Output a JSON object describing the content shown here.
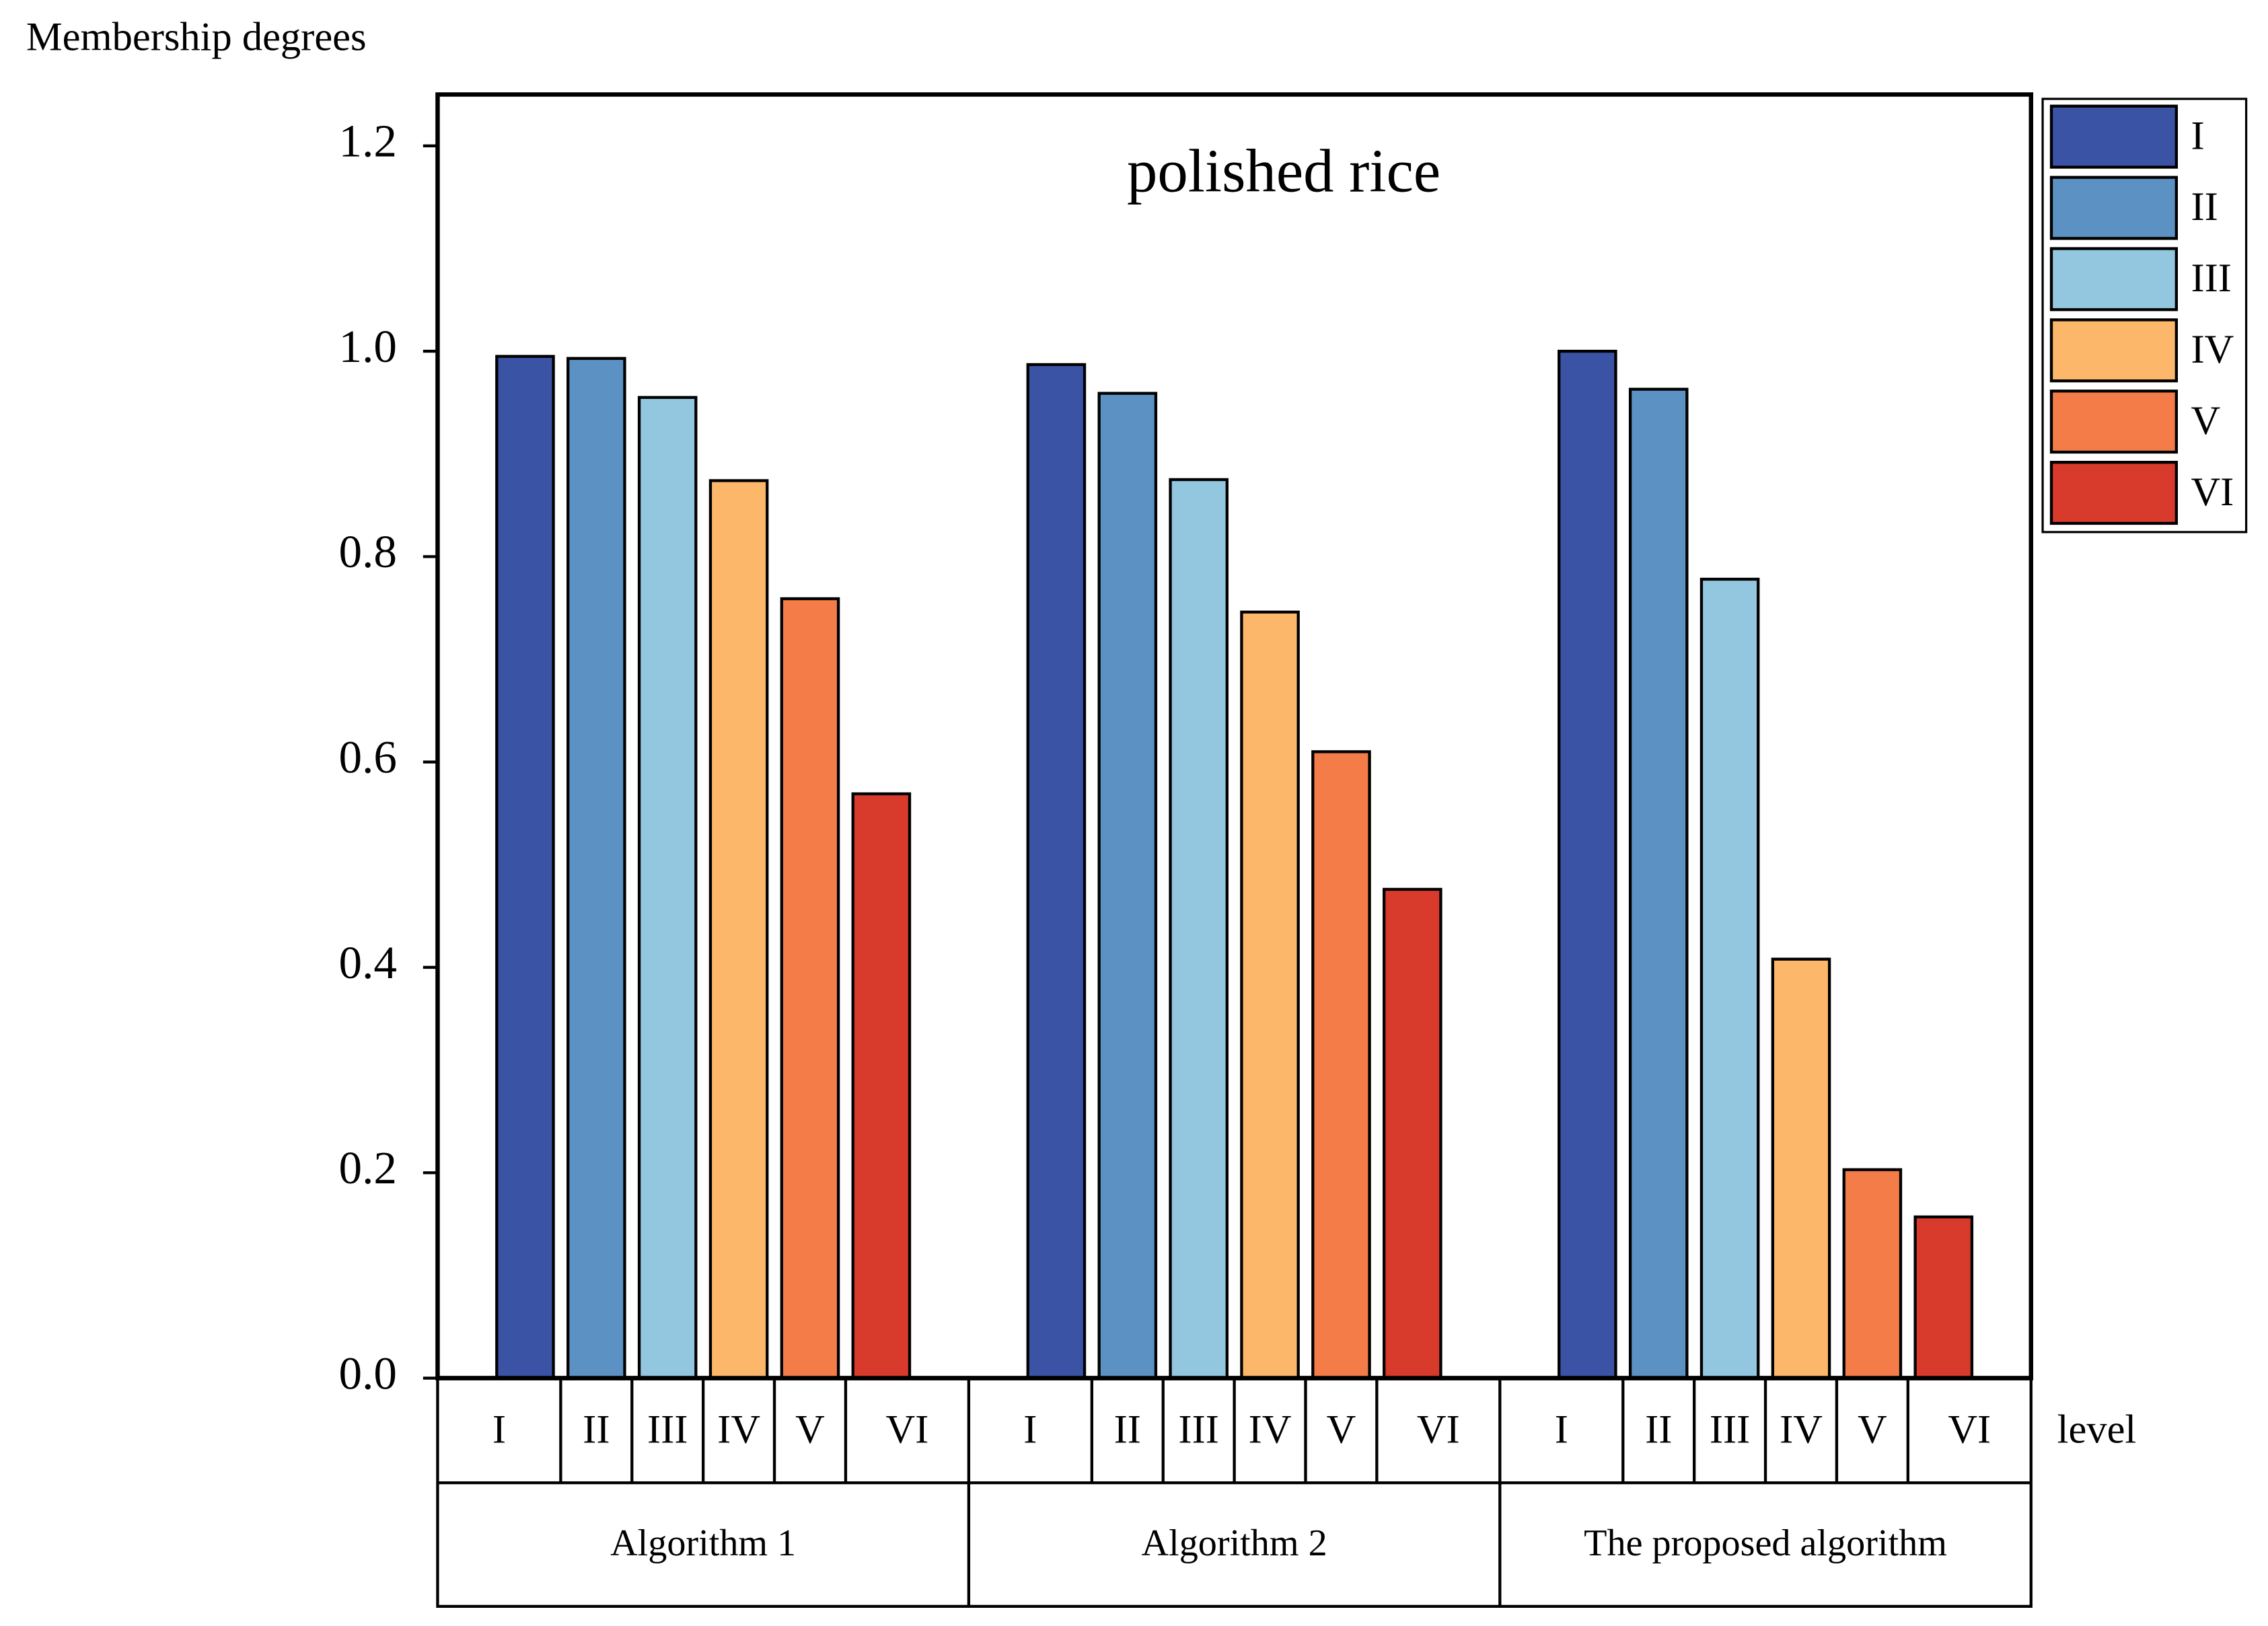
{
  "chart_data": {
    "type": "bar",
    "title": "polished rice",
    "y_label": "Membership degrees",
    "x_label": "level",
    "categories": [
      "Algorithm 1",
      "Algorithm 2",
      "The proposed algorithm"
    ],
    "series": [
      {
        "name": "I",
        "color": "#3a53a4",
        "values": [
          0.995,
          0.987,
          1.0
        ]
      },
      {
        "name": "II",
        "color": "#5b91c3",
        "values": [
          0.993,
          0.959,
          0.963
        ]
      },
      {
        "name": "III",
        "color": "#93c6df",
        "values": [
          0.955,
          0.875,
          0.778
        ]
      },
      {
        "name": "IV",
        "color": "#fdb76a",
        "values": [
          0.874,
          0.746,
          0.408
        ]
      },
      {
        "name": "V",
        "color": "#f47c48",
        "values": [
          0.759,
          0.61,
          0.203
        ]
      },
      {
        "name": "VI",
        "color": "#d83a2c",
        "values": [
          0.569,
          0.476,
          0.157
        ]
      }
    ],
    "ylim": [
      0,
      1.25
    ],
    "yticks": [
      {
        "value": 0,
        "label": "0.0"
      },
      {
        "value": 0.2,
        "label": "0.2"
      },
      {
        "value": 0.4,
        "label": "0.4"
      },
      {
        "value": 0.6,
        "label": "0.6"
      },
      {
        "value": 0.8,
        "label": "0.8"
      },
      {
        "value": 1.0,
        "label": "1.0"
      },
      {
        "value": 1.2,
        "label": "1.2"
      }
    ],
    "legend": "outside-right"
  }
}
